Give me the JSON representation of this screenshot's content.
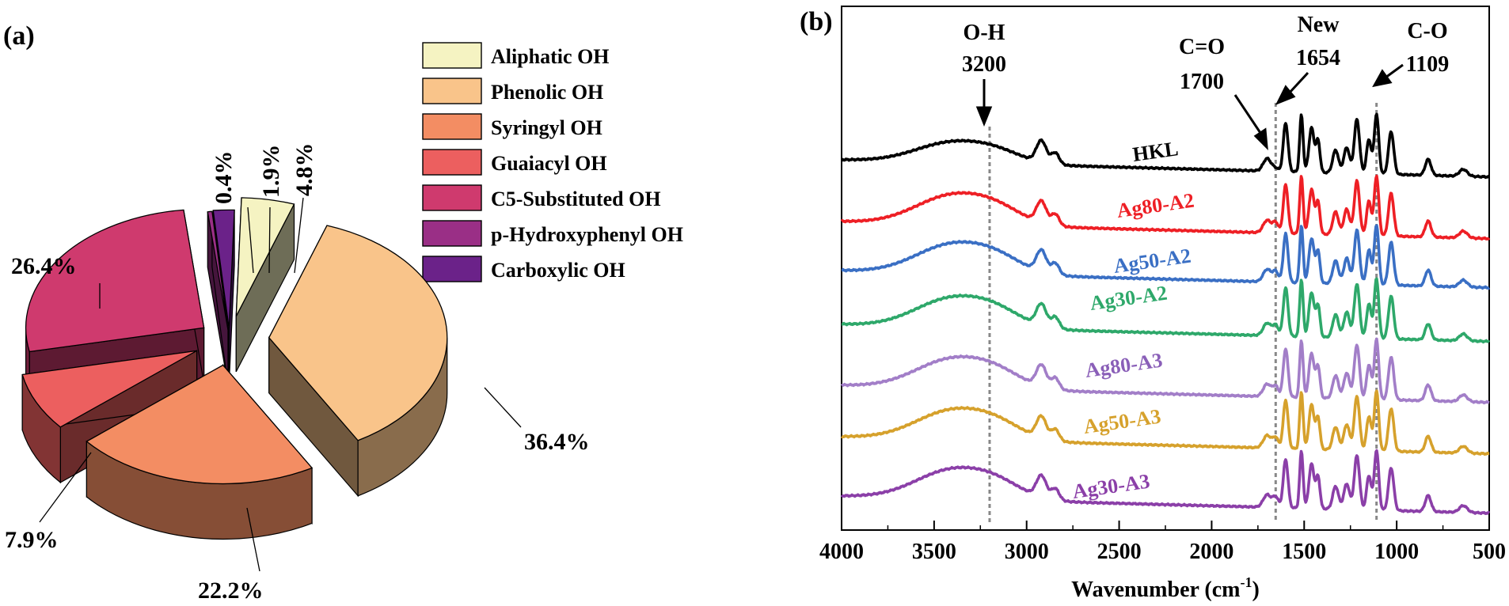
{
  "pie_panel": {
    "label": "(a)",
    "chart_data": {
      "type": "pie",
      "style": "3d-exploded",
      "slices": [
        {
          "name": "Aliphatic OH",
          "value": 4.8,
          "label": "4.8%",
          "color": "#f5f3c2"
        },
        {
          "name": "Phenolic OH",
          "value": 36.4,
          "label": "36.4%",
          "color": "#f9c48a"
        },
        {
          "name": "Syringyl OH",
          "value": 22.2,
          "label": "22.2%",
          "color": "#f38d63"
        },
        {
          "name": "Guaiacyl OH",
          "value": 7.9,
          "label": "7.9%",
          "color": "#ec5f5f"
        },
        {
          "name": "C5-Substituted OH",
          "value": 26.4,
          "label": "26.4%",
          "color": "#cf3a6e"
        },
        {
          "name": "p-Hydroxyphenyl OH",
          "value": 0.4,
          "label": "0.4%",
          "color": "#9a2f86"
        },
        {
          "name": "Carboxylic OH",
          "value": 1.9,
          "label": "1.9%",
          "color": "#6b2289"
        }
      ],
      "legend_position": "top-right"
    }
  },
  "ftir_panel": {
    "label": "(b)",
    "chart_data": {
      "type": "line",
      "xlabel_main": "Wavenumber (cm",
      "xlabel_sup": "-1",
      "xlabel_close": ")",
      "xlim": [
        4000,
        500
      ],
      "x_ticks": [
        4000,
        3500,
        3000,
        2500,
        2000,
        1500,
        1000,
        500
      ],
      "tick_labels": [
        "4000",
        "3500",
        "3000",
        "2500",
        "2000",
        "1500",
        "1000",
        "500"
      ],
      "ylabel": "",
      "y_axis": "stacked offset transmittance, no tick labels",
      "series": [
        {
          "name": "HKL",
          "color": "#000000",
          "offset": 6
        },
        {
          "name": "Ag80-A2",
          "color": "#ee1f25",
          "offset": 5
        },
        {
          "name": "Ag50-A2",
          "color": "#3a6fc4",
          "offset": 4
        },
        {
          "name": "Ag30-A2",
          "color": "#2ea86a",
          "offset": 3
        },
        {
          "name": "Ag80-A3",
          "color": "#a27ec8",
          "offset": 2
        },
        {
          "name": "Ag50-A3",
          "color": "#d6a12c",
          "offset": 1
        },
        {
          "name": "Ag30-A3",
          "color": "#8b3fa8",
          "offset": 0
        }
      ],
      "peak_shape": [
        {
          "x": 3400,
          "depth": 0.5,
          "width": 280
        },
        {
          "x": 3150,
          "depth": 0.2,
          "width": 200
        },
        {
          "x": 2920,
          "depth": 0.38,
          "width": 38
        },
        {
          "x": 2845,
          "depth": 0.2,
          "width": 30
        },
        {
          "x": 1700,
          "depth": 0.22,
          "width": 30
        },
        {
          "x": 1654,
          "depth": 0.18,
          "width": 22
        },
        {
          "x": 1600,
          "depth": 0.85,
          "width": 18
        },
        {
          "x": 1515,
          "depth": 1.0,
          "width": 13
        },
        {
          "x": 1460,
          "depth": 0.78,
          "width": 20
        },
        {
          "x": 1425,
          "depth": 0.55,
          "width": 15
        },
        {
          "x": 1330,
          "depth": 0.4,
          "width": 22
        },
        {
          "x": 1270,
          "depth": 0.45,
          "width": 22
        },
        {
          "x": 1215,
          "depth": 0.95,
          "width": 20
        },
        {
          "x": 1150,
          "depth": 0.6,
          "width": 18
        },
        {
          "x": 1109,
          "depth": 1.05,
          "width": 17
        },
        {
          "x": 1030,
          "depth": 0.75,
          "width": 20
        },
        {
          "x": 830,
          "depth": 0.28,
          "width": 22
        },
        {
          "x": 640,
          "depth": 0.12,
          "width": 30
        }
      ],
      "annotations": [
        {
          "id": "oh",
          "line1": "O-H",
          "line2": "3200",
          "x": 3200
        },
        {
          "id": "co_double",
          "line1": "C=O",
          "line2": "1700",
          "x": 1700
        },
        {
          "id": "new",
          "line1": "New",
          "line2": "1654",
          "x": 1654
        },
        {
          "id": "co_single",
          "line1": "C-O",
          "line2": "1109",
          "x": 1109
        }
      ],
      "reference_lines": [
        3200,
        1654,
        1109
      ]
    }
  }
}
